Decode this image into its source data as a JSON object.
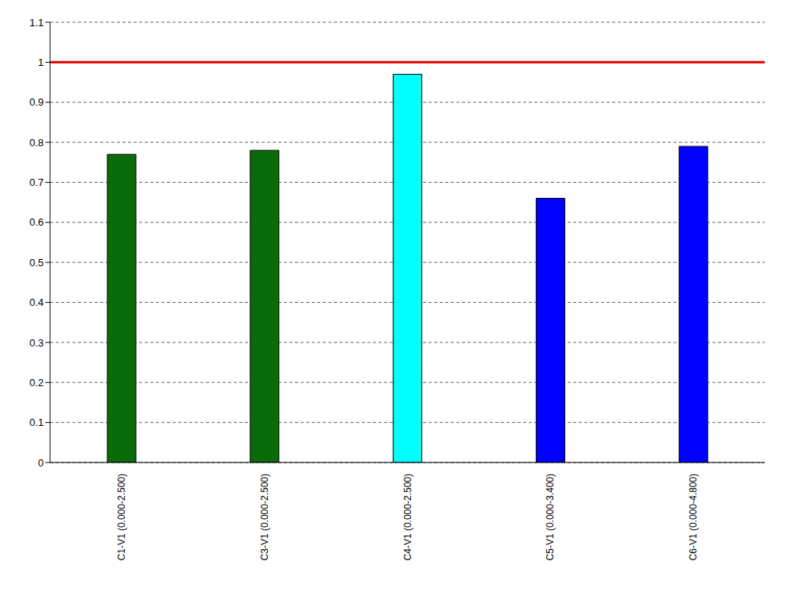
{
  "chart_data": {
    "type": "bar",
    "categories": [
      "C1-V1 (0.000-2.500)",
      "C3-V1 (0.000-2.500)",
      "C4-V1 (0.000-2.500)",
      "C5-V1 (0.000-3.400)",
      "C6-V1 (0.000-4.800)"
    ],
    "values": [
      0.77,
      0.78,
      0.97,
      0.66,
      0.79
    ],
    "colors": [
      "#0a6b0a",
      "#0a6b0a",
      "#00ffff",
      "#0000ff",
      "#0000ff"
    ],
    "ylim": [
      0,
      1.1
    ],
    "yticks": [
      0,
      0.1,
      0.2,
      0.3,
      0.4,
      0.5,
      0.6,
      0.7,
      0.8,
      0.9,
      1,
      1.1
    ],
    "grid": true,
    "limit": 1
  }
}
